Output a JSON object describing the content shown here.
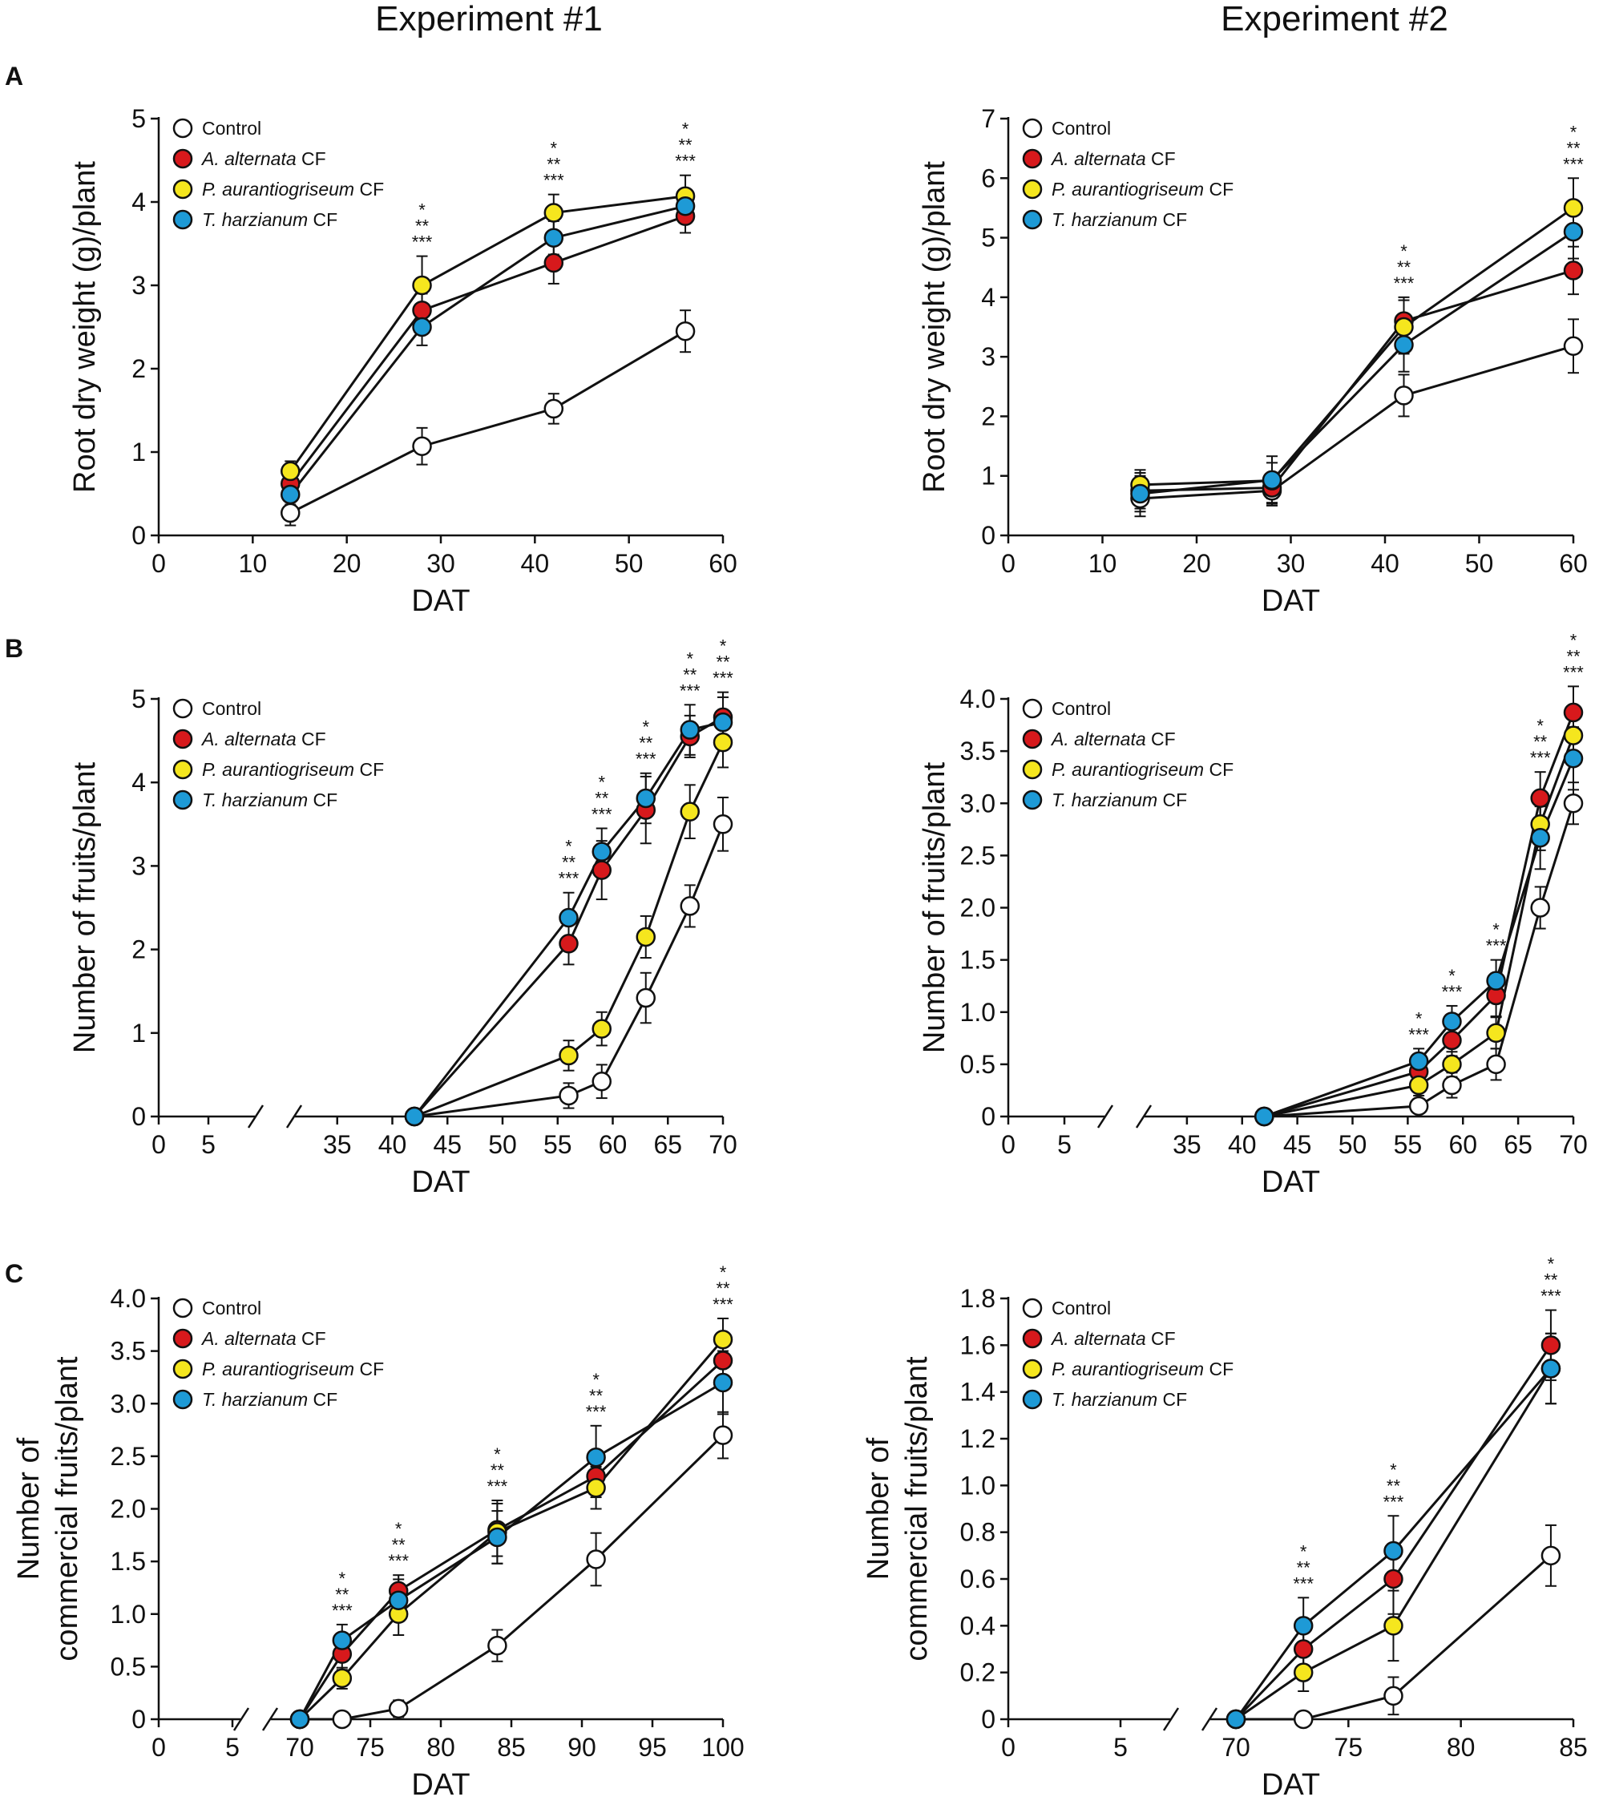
{
  "columns": [
    "Experiment #1",
    "Experiment #2"
  ],
  "panel_letters": [
    "A",
    "B",
    "C"
  ],
  "colors": {
    "Control": "#ffffff",
    "A. alternata CF": "#d7191c",
    "P. aurantiogriseum CF": "#f5e61e",
    "T. harzianum CF": "#1e9ad6"
  },
  "chart_data": [
    {
      "id": "A1",
      "type": "line",
      "panel": "A",
      "column": "Experiment #1",
      "xlabel": "DAT",
      "ylabel": "Root dry weight (g)/plant",
      "xlim": [
        0,
        60
      ],
      "ylim": [
        0,
        5
      ],
      "xticks": [
        0,
        10,
        20,
        30,
        40,
        50,
        60
      ],
      "yticks": [
        0,
        1,
        2,
        3,
        4,
        5
      ],
      "x": [
        14,
        28,
        42,
        56
      ],
      "series": [
        {
          "name": "Control",
          "values": [
            0.27,
            1.07,
            1.52,
            2.45
          ],
          "err": [
            0.15,
            0.22,
            0.18,
            0.25
          ]
        },
        {
          "name": "A. alternata CF",
          "values": [
            0.62,
            2.7,
            3.27,
            3.83
          ],
          "err": [
            0.12,
            0.2,
            0.25,
            0.2
          ]
        },
        {
          "name": "P. aurantiogriseum CF",
          "values": [
            0.77,
            3.0,
            3.87,
            4.07
          ],
          "err": [
            0.12,
            0.35,
            0.22,
            0.25
          ]
        },
        {
          "name": "T. harzianum CF",
          "values": [
            0.49,
            2.5,
            3.57,
            3.95
          ],
          "err": [
            0.12,
            0.22,
            0.2,
            0.2
          ]
        }
      ],
      "annotations": [
        {
          "x": 28,
          "text": [
            "*",
            "**",
            "***"
          ]
        },
        {
          "x": 42,
          "text": [
            "*",
            "**",
            "***"
          ]
        },
        {
          "x": 56,
          "text": [
            "*",
            "**",
            "***"
          ]
        }
      ]
    },
    {
      "id": "A2",
      "type": "line",
      "panel": "A",
      "column": "Experiment #2",
      "xlabel": "DAT",
      "ylabel": "Root dry weight (g)/plant",
      "xlim": [
        0,
        60
      ],
      "ylim": [
        0,
        7
      ],
      "xticks": [
        0,
        10,
        20,
        30,
        40,
        50,
        60
      ],
      "yticks": [
        0,
        1,
        2,
        3,
        4,
        5,
        6,
        7
      ],
      "x": [
        14,
        28,
        42,
        60
      ],
      "series": [
        {
          "name": "Control",
          "values": [
            0.62,
            0.75,
            2.35,
            3.18
          ],
          "err": [
            0.3,
            0.25,
            0.35,
            0.45
          ]
        },
        {
          "name": "A. alternata CF",
          "values": [
            0.75,
            0.8,
            3.6,
            4.45
          ],
          "err": [
            0.3,
            0.25,
            0.4,
            0.4
          ]
        },
        {
          "name": "P. aurantiogriseum CF",
          "values": [
            0.85,
            0.92,
            3.5,
            5.5
          ],
          "err": [
            0.25,
            0.3,
            0.45,
            0.5
          ]
        },
        {
          "name": "T. harzianum CF",
          "values": [
            0.7,
            0.93,
            3.2,
            5.1
          ],
          "err": [
            0.3,
            0.4,
            0.45,
            0.45
          ]
        }
      ],
      "annotations": [
        {
          "x": 42,
          "text": [
            "*",
            "**",
            "***"
          ]
        },
        {
          "x": 60,
          "text": [
            "*",
            "**",
            "***"
          ]
        }
      ]
    },
    {
      "id": "B1",
      "type": "line",
      "panel": "B",
      "column": "Experiment #1",
      "xlabel": "DAT",
      "ylabel": "Number of fruits/plant",
      "axis_break": true,
      "xlim": [
        30,
        70
      ],
      "ylim": [
        0,
        5
      ],
      "xticks_before_break": [
        0,
        5
      ],
      "xticks": [
        35,
        40,
        45,
        50,
        55,
        60,
        65,
        70
      ],
      "yticks": [
        0,
        1,
        2,
        3,
        4,
        5
      ],
      "x": [
        42,
        56,
        59,
        63,
        67,
        70
      ],
      "series": [
        {
          "name": "Control",
          "values": [
            0,
            0.25,
            0.42,
            1.42,
            2.52,
            3.5
          ],
          "err": [
            0,
            0.15,
            0.2,
            0.3,
            0.25,
            0.32
          ]
        },
        {
          "name": "A. alternata CF",
          "values": [
            0,
            2.07,
            2.95,
            3.67,
            4.55,
            4.78
          ],
          "err": [
            0,
            0.25,
            0.35,
            0.4,
            0.25,
            0.3
          ]
        },
        {
          "name": "P. aurantiogriseum CF",
          "values": [
            0,
            0.73,
            1.05,
            2.15,
            3.65,
            4.48
          ],
          "err": [
            0,
            0.18,
            0.2,
            0.25,
            0.32,
            0.3
          ]
        },
        {
          "name": "T. harzianum CF",
          "values": [
            0,
            2.38,
            3.17,
            3.81,
            4.63,
            4.72
          ],
          "err": [
            0,
            0.3,
            0.28,
            0.3,
            0.3,
            0.3
          ]
        }
      ],
      "annotations": [
        {
          "x": 56,
          "text": [
            "*",
            "**",
            "***"
          ]
        },
        {
          "x": 59,
          "text": [
            "*",
            "**",
            "***"
          ]
        },
        {
          "x": 63,
          "text": [
            "*",
            "**",
            "***"
          ]
        },
        {
          "x": 67,
          "text": [
            "*",
            "**",
            "***"
          ]
        },
        {
          "x": 70,
          "text": [
            "*",
            "**",
            "***"
          ]
        }
      ]
    },
    {
      "id": "B2",
      "type": "line",
      "panel": "B",
      "column": "Experiment #2",
      "xlabel": "DAT",
      "ylabel": "Number of fruits/plant",
      "axis_break": true,
      "xlim": [
        30,
        70
      ],
      "ylim": [
        0,
        4
      ],
      "xticks_before_break": [
        0,
        5
      ],
      "xticks": [
        35,
        40,
        45,
        50,
        55,
        60,
        65,
        70
      ],
      "yticks": [
        "0",
        "0.5",
        "1.0",
        "1.5",
        "2.0",
        "2.5",
        "3.0",
        "3.5",
        "4.0"
      ],
      "x": [
        42,
        56,
        59,
        63,
        67,
        70
      ],
      "series": [
        {
          "name": "Control",
          "values": [
            0,
            0.1,
            0.3,
            0.5,
            2.0,
            3.0
          ],
          "err": [
            0,
            0.05,
            0.12,
            0.15,
            0.2,
            0.2
          ]
        },
        {
          "name": "A. alternata CF",
          "values": [
            0,
            0.43,
            0.73,
            1.16,
            3.05,
            3.87
          ],
          "err": [
            0,
            0.1,
            0.15,
            0.2,
            0.25,
            0.25
          ]
        },
        {
          "name": "P. aurantiogriseum CF",
          "values": [
            0,
            0.3,
            0.5,
            0.8,
            2.8,
            3.65
          ],
          "err": [
            0,
            0.1,
            0.12,
            0.15,
            0.25,
            0.25
          ]
        },
        {
          "name": "T. harzianum CF",
          "values": [
            0,
            0.53,
            0.91,
            1.3,
            2.67,
            3.43
          ],
          "err": [
            0,
            0.12,
            0.15,
            0.2,
            0.3,
            0.3
          ]
        }
      ],
      "annotations": [
        {
          "x": 56,
          "text": [
            "*",
            "***"
          ]
        },
        {
          "x": 59,
          "text": [
            "*",
            "***"
          ]
        },
        {
          "x": 63,
          "text": [
            "*",
            "***"
          ]
        },
        {
          "x": 67,
          "text": [
            "*",
            "**",
            "***"
          ]
        },
        {
          "x": 70,
          "text": [
            "*",
            "**",
            "***"
          ]
        }
      ]
    },
    {
      "id": "C1",
      "type": "line",
      "panel": "C",
      "column": "Experiment #1",
      "xlabel": "DAT",
      "ylabel": "Number of\ncommercial fruits/plant",
      "axis_break": true,
      "xlim": [
        70,
        100
      ],
      "ylim": [
        0,
        4
      ],
      "xticks_before_break": [
        0,
        5
      ],
      "xticks": [
        70,
        75,
        80,
        85,
        90,
        95,
        100
      ],
      "yticks": [
        "0",
        "0.5",
        "1.0",
        "1.5",
        "2.0",
        "2.5",
        "3.0",
        "3.5",
        "4.0"
      ],
      "x": [
        70,
        73,
        77,
        84,
        91,
        100
      ],
      "series": [
        {
          "name": "Control",
          "values": [
            0,
            0,
            0.1,
            0.7,
            1.52,
            2.7
          ],
          "err": [
            0,
            0,
            0.08,
            0.15,
            0.25,
            0.22
          ]
        },
        {
          "name": "A. alternata CF",
          "values": [
            0,
            0.62,
            1.22,
            1.8,
            2.31,
            3.41
          ],
          "err": [
            0,
            0.15,
            0.15,
            0.25,
            0.2,
            0.2
          ]
        },
        {
          "name": "P. aurantiogriseum CF",
          "values": [
            0,
            0.39,
            1.0,
            1.78,
            2.2,
            3.61
          ],
          "err": [
            0,
            0.1,
            0.2,
            0.3,
            0.2,
            0.2
          ]
        },
        {
          "name": "T. harzianum CF",
          "values": [
            0,
            0.75,
            1.13,
            1.73,
            2.49,
            3.2
          ],
          "err": [
            0,
            0.15,
            0.2,
            0.25,
            0.3,
            0.3
          ]
        }
      ],
      "annotations": [
        {
          "x": 73,
          "text": [
            "*",
            "**",
            "***"
          ]
        },
        {
          "x": 77,
          "text": [
            "*",
            "**",
            "***"
          ]
        },
        {
          "x": 84,
          "text": [
            "*",
            "**",
            "***"
          ]
        },
        {
          "x": 91,
          "text": [
            "*",
            "**",
            "***"
          ]
        },
        {
          "x": 100,
          "text": [
            "*",
            "**",
            "***"
          ]
        }
      ]
    },
    {
      "id": "C2",
      "type": "line",
      "panel": "C",
      "column": "Experiment #2",
      "xlabel": "DAT",
      "ylabel": "Number of\ncommercial fruits/plant",
      "axis_break": true,
      "xlim": [
        70,
        85
      ],
      "ylim": [
        0,
        1.8
      ],
      "xticks_before_break": [
        0,
        5
      ],
      "xticks": [
        70,
        75,
        80,
        85
      ],
      "yticks": [
        "0",
        "0.2",
        "0.4",
        "0.6",
        "0.8",
        "1.0",
        "1.2",
        "1.4",
        "1.6",
        "1.8"
      ],
      "x": [
        70,
        73,
        77,
        84
      ],
      "series": [
        {
          "name": "Control",
          "values": [
            0,
            0,
            0.1,
            0.7
          ],
          "err": [
            0,
            0,
            0.08,
            0.13
          ]
        },
        {
          "name": "A. alternata CF",
          "values": [
            0,
            0.3,
            0.6,
            1.6
          ],
          "err": [
            0,
            0.1,
            0.15,
            0.15
          ]
        },
        {
          "name": "P. aurantiogriseum CF",
          "values": [
            0,
            0.2,
            0.4,
            1.5
          ],
          "err": [
            0,
            0.08,
            0.15,
            0.15
          ]
        },
        {
          "name": "T. harzianum CF",
          "values": [
            0,
            0.4,
            0.72,
            1.5
          ],
          "err": [
            0,
            0.12,
            0.15,
            0.15
          ]
        }
      ],
      "annotations": [
        {
          "x": 73,
          "text": [
            "*",
            "**",
            "***"
          ]
        },
        {
          "x": 77,
          "text": [
            "*",
            "**",
            "***"
          ]
        },
        {
          "x": 84,
          "text": [
            "*",
            "**",
            "***"
          ]
        }
      ]
    }
  ]
}
